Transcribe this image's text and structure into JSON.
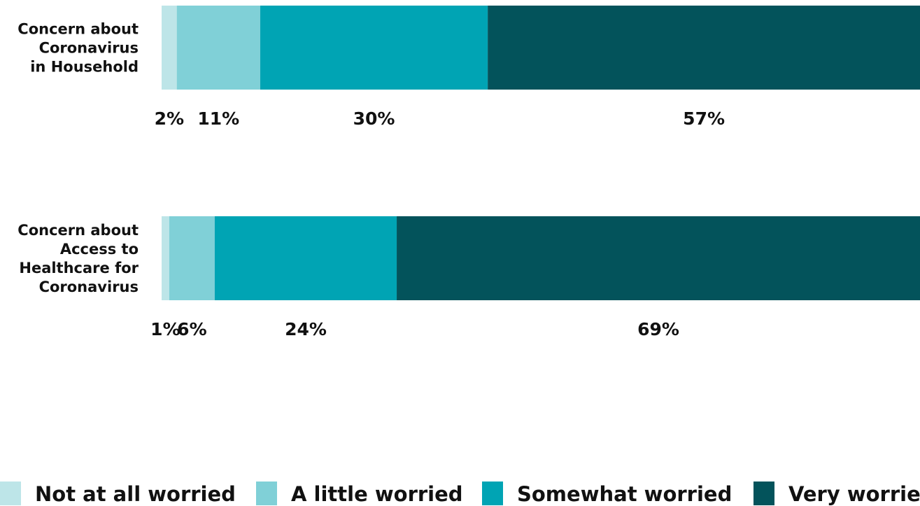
{
  "chart_data": {
    "type": "bar",
    "orientation": "horizontal",
    "stacked": true,
    "value_unit": "%",
    "categories": [
      "Concern about Coronavirus in Household",
      "Concern about Access to Healthcare for Coronavirus"
    ],
    "category_lines": [
      [
        "Concern about",
        "Coronavirus",
        "in Household"
      ],
      [
        "Concern about",
        "Access to",
        "Healthcare for",
        "Coronavirus"
      ]
    ],
    "series": [
      {
        "name": "Not at all worried",
        "color": "#bde5e8",
        "values": [
          2,
          1
        ]
      },
      {
        "name": "A little worried",
        "color": "#80d0d7",
        "values": [
          11,
          6
        ]
      },
      {
        "name": "Somewhat worried",
        "color": "#00a4b4",
        "values": [
          30,
          24
        ]
      },
      {
        "name": "Very worried",
        "color": "#03535b",
        "values": [
          57,
          69
        ]
      }
    ],
    "xlim": [
      0,
      100
    ],
    "grid": false,
    "legend_position": "bottom",
    "data_labels_position": "below bars"
  }
}
